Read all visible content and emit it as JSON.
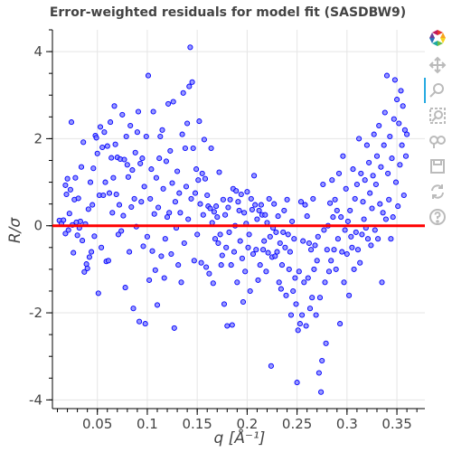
{
  "chart_data": {
    "type": "scatter",
    "title": "Error-weighted residuals for model fit (SASDBW9)",
    "xlabel": "q [Å⁻¹]",
    "ylabel": "R/σ",
    "xlim": [
      0.005,
      0.378
    ],
    "ylim": [
      -4.2,
      4.5
    ],
    "xticks": [
      0.05,
      0.1,
      0.15,
      0.2,
      0.25,
      0.3,
      0.35
    ],
    "xtick_labels": [
      "0.05",
      "0.1",
      "0.15",
      "0.2",
      "0.25",
      "0.3",
      "0.35"
    ],
    "yticks": [
      -4,
      -2,
      0,
      2,
      4
    ],
    "ytick_labels": [
      "-4",
      "-2",
      "0",
      "2",
      "4"
    ],
    "reference_line": {
      "y": 0,
      "color": "#ff0000"
    },
    "grid": true,
    "marker_color": "#0000ff",
    "marker_fill": "#8080ff",
    "points": [
      [
        0.012,
        0.12
      ],
      [
        0.014,
        0.05
      ],
      [
        0.016,
        0.13
      ],
      [
        0.018,
        -0.18
      ],
      [
        0.018,
        0.93
      ],
      [
        0.019,
        0.72
      ],
      [
        0.02,
        1.08
      ],
      [
        0.021,
        -0.1
      ],
      [
        0.022,
        0.28
      ],
      [
        0.023,
        0.83
      ],
      [
        0.024,
        2.38
      ],
      [
        0.025,
        0.02
      ],
      [
        0.026,
        -0.62
      ],
      [
        0.027,
        0.6
      ],
      [
        0.028,
        1.1
      ],
      [
        0.029,
        0.08
      ],
      [
        0.03,
        -0.22
      ],
      [
        0.031,
        0.63
      ],
      [
        0.032,
        -0.05
      ],
      [
        0.033,
        0.1
      ],
      [
        0.034,
        1.35
      ],
      [
        0.035,
        -0.34
      ],
      [
        0.036,
        1.92
      ],
      [
        0.037,
        -1.06
      ],
      [
        0.038,
        0.04
      ],
      [
        0.039,
        -0.88
      ],
      [
        0.04,
        -0.98
      ],
      [
        0.041,
        0.38
      ],
      [
        0.042,
        -0.72
      ],
      [
        0.043,
        1.0
      ],
      [
        0.044,
        -0.6
      ],
      [
        0.045,
        0.48
      ],
      [
        0.046,
        1.32
      ],
      [
        0.047,
        -0.24
      ],
      [
        0.048,
        2.07
      ],
      [
        0.049,
        2.02
      ],
      [
        0.05,
        1.66
      ],
      [
        0.051,
        -1.55
      ],
      [
        0.052,
        0.7
      ],
      [
        0.053,
        2.27
      ],
      [
        0.054,
        -0.5
      ],
      [
        0.055,
        1.8
      ],
      [
        0.056,
        0.7
      ],
      [
        0.057,
        2.15
      ],
      [
        0.058,
        1.0
      ],
      [
        0.059,
        -0.82
      ],
      [
        0.06,
        1.83
      ],
      [
        0.061,
        -0.8
      ],
      [
        0.062,
        0.75
      ],
      [
        0.063,
        2.38
      ],
      [
        0.064,
        1.56
      ],
      [
        0.065,
        0.3
      ],
      [
        0.066,
        1.1
      ],
      [
        0.067,
        2.75
      ],
      [
        0.068,
        1.87
      ],
      [
        0.069,
        0.72
      ],
      [
        0.07,
        1.57
      ],
      [
        0.071,
        -0.2
      ],
      [
        0.072,
        0.48
      ],
      [
        0.073,
        1.53
      ],
      [
        0.074,
        -0.12
      ],
      [
        0.075,
        2.55
      ],
      [
        0.076,
        0.23
      ],
      [
        0.077,
        1.52
      ],
      [
        0.078,
        -1.42
      ],
      [
        0.079,
        2.05
      ],
      [
        0.08,
        1.4
      ],
      [
        0.081,
        1.12
      ],
      [
        0.082,
        -0.6
      ],
      [
        0.083,
        2.3
      ],
      [
        0.084,
        0.43
      ],
      [
        0.085,
        1.28
      ],
      [
        0.086,
        -1.9
      ],
      [
        0.087,
        0.62
      ],
      [
        0.088,
        1.68
      ],
      [
        0.089,
        -0.02
      ],
      [
        0.09,
        2.15
      ],
      [
        0.091,
        2.62
      ],
      [
        0.092,
        -2.2
      ],
      [
        0.093,
        1.43
      ],
      [
        0.094,
        0.55
      ],
      [
        0.095,
        1.55
      ],
      [
        0.096,
        -0.47
      ],
      [
        0.097,
        0.9
      ],
      [
        0.098,
        -2.25
      ],
      [
        0.099,
        2.05
      ],
      [
        0.1,
        -0.25
      ],
      [
        0.101,
        3.45
      ],
      [
        0.102,
        -1.25
      ],
      [
        0.103,
        0.62
      ],
      [
        0.104,
        1.3
      ],
      [
        0.105,
        -0.58
      ],
      [
        0.106,
        2.62
      ],
      [
        0.107,
        0.27
      ],
      [
        0.108,
        -1.02
      ],
      [
        0.109,
        1.1
      ],
      [
        0.11,
        -1.82
      ],
      [
        0.111,
        0.42
      ],
      [
        0.112,
        1.55
      ],
      [
        0.113,
        2.05
      ],
      [
        0.114,
        -0.7
      ],
      [
        0.115,
        2.2
      ],
      [
        0.116,
        0.85
      ],
      [
        0.117,
        -1.2
      ],
      [
        0.118,
        -0.3
      ],
      [
        0.119,
        1.48
      ],
      [
        0.12,
        0.2
      ],
      [
        0.121,
        2.8
      ],
      [
        0.122,
        0.3
      ],
      [
        0.123,
        1.72
      ],
      [
        0.124,
        -0.65
      ],
      [
        0.125,
        0.98
      ],
      [
        0.126,
        2.85
      ],
      [
        0.127,
        -2.35
      ],
      [
        0.128,
        0.55
      ],
      [
        0.129,
        -0.05
      ],
      [
        0.13,
        1.25
      ],
      [
        0.131,
        -0.9
      ],
      [
        0.132,
        0.75
      ],
      [
        0.133,
        0.3
      ],
      [
        0.134,
        -1.3
      ],
      [
        0.135,
        2.1
      ],
      [
        0.136,
        3.05
      ],
      [
        0.137,
        -0.4
      ],
      [
        0.138,
        1.78
      ],
      [
        0.139,
        0.9
      ],
      [
        0.14,
        2.35
      ],
      [
        0.141,
        0.15
      ],
      [
        0.142,
        3.2
      ],
      [
        0.143,
        4.1
      ],
      [
        0.144,
        0.62
      ],
      [
        0.145,
        3.3
      ],
      [
        0.146,
        1.78
      ],
      [
        0.147,
        -0.8
      ],
      [
        0.148,
        0.75
      ],
      [
        0.149,
        1.3
      ],
      [
        0.15,
        -0.2
      ],
      [
        0.151,
        1.05
      ],
      [
        0.152,
        2.4
      ],
      [
        0.153,
        0.5
      ],
      [
        0.154,
        -0.85
      ],
      [
        0.155,
        1.2
      ],
      [
        0.156,
        0.25
      ],
      [
        0.157,
        1.98
      ],
      [
        0.158,
        1.08
      ],
      [
        0.159,
        -0.95
      ],
      [
        0.16,
        0.7
      ],
      [
        0.161,
        0.45
      ],
      [
        0.162,
        -1.1
      ],
      [
        0.163,
        0.4
      ],
      [
        0.164,
        1.78
      ],
      [
        0.165,
        0.07
      ],
      [
        0.166,
        -1.32
      ],
      [
        0.167,
        0.32
      ],
      [
        0.168,
        -0.3
      ],
      [
        0.169,
        0.45
      ],
      [
        0.17,
        0.2
      ],
      [
        0.171,
        -0.4
      ],
      [
        0.172,
        1.23
      ],
      [
        0.173,
        -0.2
      ],
      [
        0.174,
        -0.9
      ],
      [
        0.175,
        -0.68
      ],
      [
        0.176,
        0.6
      ],
      [
        0.177,
        -1.8
      ],
      [
        0.178,
        0.25
      ],
      [
        0.179,
        -0.5
      ],
      [
        0.18,
        -2.3
      ],
      [
        0.181,
        0.42
      ],
      [
        0.182,
        -0.15
      ],
      [
        0.183,
        0.6
      ],
      [
        0.184,
        -0.9
      ],
      [
        0.185,
        -2.28
      ],
      [
        0.186,
        0.85
      ],
      [
        0.187,
        -0.6
      ],
      [
        0.188,
        0.0
      ],
      [
        0.189,
        0.8
      ],
      [
        0.19,
        -1.3
      ],
      [
        0.191,
        0.55
      ],
      [
        0.192,
        0.35
      ],
      [
        0.193,
        -0.35
      ],
      [
        0.194,
        0.72
      ],
      [
        0.195,
        -0.75
      ],
      [
        0.196,
        -1.75
      ],
      [
        0.197,
        0.3
      ],
      [
        0.198,
        -1.05
      ],
      [
        0.199,
        0.05
      ],
      [
        0.2,
        0.78
      ],
      [
        0.201,
        -0.5
      ],
      [
        0.202,
        -0.2
      ],
      [
        0.203,
        -1.5
      ],
      [
        0.204,
        0.62
      ],
      [
        0.205,
        0.37
      ],
      [
        0.206,
        -0.65
      ],
      [
        0.207,
        1.15
      ],
      [
        0.208,
        0.48
      ],
      [
        0.209,
        -0.55
      ],
      [
        0.21,
        0.15
      ],
      [
        0.211,
        -1.25
      ],
      [
        0.212,
        0.35
      ],
      [
        0.213,
        -0.9
      ],
      [
        0.214,
        0.48
      ],
      [
        0.215,
        0.25
      ],
      [
        0.216,
        -0.55
      ],
      [
        0.217,
        -0.35
      ],
      [
        0.218,
        0.25
      ],
      [
        0.219,
        -1.05
      ],
      [
        0.22,
        0.07
      ],
      [
        0.221,
        -0.62
      ],
      [
        0.222,
        0.62
      ],
      [
        0.223,
        -0.25
      ],
      [
        0.224,
        -3.22
      ],
      [
        0.225,
        -0.72
      ],
      [
        0.226,
        -0.05
      ],
      [
        0.227,
        0.5
      ],
      [
        0.228,
        -0.7
      ],
      [
        0.229,
        -0.15
      ],
      [
        0.23,
        -0.6
      ],
      [
        0.231,
        0.22
      ],
      [
        0.232,
        -1.3
      ],
      [
        0.233,
        -0.4
      ],
      [
        0.234,
        -1.45
      ],
      [
        0.235,
        -0.9
      ],
      [
        0.236,
        -0.15
      ],
      [
        0.237,
        0.35
      ],
      [
        0.238,
        -0.5
      ],
      [
        0.239,
        -1.6
      ],
      [
        0.24,
        0.6
      ],
      [
        0.241,
        -0.2
      ],
      [
        0.242,
        -1.0
      ],
      [
        0.243,
        -0.6
      ],
      [
        0.244,
        -2.05
      ],
      [
        0.245,
        0.1
      ],
      [
        0.246,
        -1.5
      ],
      [
        0.247,
        -0.3
      ],
      [
        0.248,
        -1.2
      ],
      [
        0.249,
        -1.8
      ],
      [
        0.25,
        -3.6
      ],
      [
        0.251,
        -2.4
      ],
      [
        0.252,
        -1.05
      ],
      [
        0.253,
        -2.25
      ],
      [
        0.254,
        0.55
      ],
      [
        0.255,
        -2.05
      ],
      [
        0.256,
        -0.35
      ],
      [
        0.257,
        -1.3
      ],
      [
        0.258,
        0.48
      ],
      [
        0.259,
        -2.3
      ],
      [
        0.26,
        0.22
      ],
      [
        0.261,
        -1.2
      ],
      [
        0.262,
        -0.4
      ],
      [
        0.263,
        -1.9
      ],
      [
        0.264,
        -0.55
      ],
      [
        0.265,
        -1.65
      ],
      [
        0.266,
        0.62
      ],
      [
        0.267,
        -1.0
      ],
      [
        0.268,
        -0.45
      ],
      [
        0.269,
        -2.05
      ],
      [
        0.27,
        -0.8
      ],
      [
        0.271,
        -0.25
      ],
      [
        0.272,
        -3.38
      ],
      [
        0.273,
        -1.65
      ],
      [
        0.274,
        -3.82
      ],
      [
        0.275,
        -3.1
      ],
      [
        0.276,
        0.95
      ],
      [
        0.277,
        -0.1
      ],
      [
        0.278,
        -1.3
      ],
      [
        0.279,
        -2.7
      ],
      [
        0.28,
        -0.55
      ],
      [
        0.281,
        0.0
      ],
      [
        0.282,
        -1.05
      ],
      [
        0.283,
        0.52
      ],
      [
        0.284,
        -0.8
      ],
      [
        0.285,
        1.05
      ],
      [
        0.286,
        0.2
      ],
      [
        0.287,
        -0.55
      ],
      [
        0.288,
        0.6
      ],
      [
        0.289,
        -1.0
      ],
      [
        0.29,
        0.35
      ],
      [
        0.291,
        -0.3
      ],
      [
        0.292,
        1.2
      ],
      [
        0.293,
        -2.25
      ],
      [
        0.294,
        0.2
      ],
      [
        0.295,
        -0.6
      ],
      [
        0.296,
        1.6
      ],
      [
        0.297,
        -1.3
      ],
      [
        0.298,
        -0.1
      ],
      [
        0.299,
        0.85
      ],
      [
        0.3,
        -0.65
      ],
      [
        0.301,
        0.1
      ],
      [
        0.302,
        -1.6
      ],
      [
        0.303,
        0.35
      ],
      [
        0.304,
        -0.25
      ],
      [
        0.305,
        -0.5
      ],
      [
        0.306,
        1.3
      ],
      [
        0.307,
        -1.0
      ],
      [
        0.308,
        0.62
      ],
      [
        0.309,
        -0.15
      ],
      [
        0.31,
        0.95
      ],
      [
        0.311,
        -0.55
      ],
      [
        0.312,
        2.0
      ],
      [
        0.313,
        -0.85
      ],
      [
        0.314,
        1.2
      ],
      [
        0.315,
        -0.2
      ],
      [
        0.316,
        0.55
      ],
      [
        0.317,
        0.15
      ],
      [
        0.318,
        1.05
      ],
      [
        0.319,
        -0.05
      ],
      [
        0.32,
        1.85
      ],
      [
        0.321,
        -0.3
      ],
      [
        0.322,
        1.45
      ],
      [
        0.323,
        0.75
      ],
      [
        0.324,
        -0.45
      ],
      [
        0.325,
        0.4
      ],
      [
        0.326,
        1.15
      ],
      [
        0.327,
        2.1
      ],
      [
        0.328,
        -0.1
      ],
      [
        0.329,
        0.95
      ],
      [
        0.33,
        1.6
      ],
      [
        0.331,
        -0.3
      ],
      [
        0.332,
        2.3
      ],
      [
        0.333,
        0.5
      ],
      [
        0.334,
        1.35
      ],
      [
        0.335,
        -1.3
      ],
      [
        0.336,
        0.3
      ],
      [
        0.337,
        1.85
      ],
      [
        0.338,
        2.6
      ],
      [
        0.339,
        0.15
      ],
      [
        0.34,
        3.45
      ],
      [
        0.341,
        1.2
      ],
      [
        0.342,
        0.6
      ],
      [
        0.343,
        2.05
      ],
      [
        0.344,
        -0.3
      ],
      [
        0.345,
        1.55
      ],
      [
        0.346,
        0.2
      ],
      [
        0.347,
        2.45
      ],
      [
        0.348,
        3.35
      ],
      [
        0.349,
        1.0
      ],
      [
        0.35,
        2.9
      ],
      [
        0.351,
        0.45
      ],
      [
        0.352,
        2.35
      ],
      [
        0.353,
        1.4
      ],
      [
        0.354,
        3.1
      ],
      [
        0.355,
        1.85
      ],
      [
        0.356,
        2.75
      ],
      [
        0.357,
        0.7
      ],
      [
        0.358,
        2.2
      ],
      [
        0.359,
        1.6
      ],
      [
        0.36,
        2.1
      ]
    ]
  },
  "toolbar": {
    "tools": [
      {
        "name": "bokeh-logo-icon",
        "active": false
      },
      {
        "name": "pan-icon",
        "active": true
      },
      {
        "name": "box-zoom-icon",
        "active": false
      },
      {
        "name": "wheel-zoom-icon",
        "active": false
      },
      {
        "name": "hover-icon",
        "active": false
      },
      {
        "name": "save-icon",
        "active": false
      },
      {
        "name": "reset-icon",
        "active": false
      },
      {
        "name": "help-icon",
        "active": false
      }
    ],
    "icon_color": "#cccccc",
    "active_color": "#26aae1"
  }
}
